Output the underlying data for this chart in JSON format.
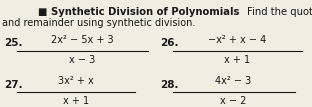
{
  "title_bold": "■ Synthetic Division of Polynomials",
  "title_normal": "Find the quotient",
  "subtitle": "and remainder using synthetic division.",
  "bg_color": "#f2ede2",
  "text_color": "#1a1a1a",
  "line_color": "#1a1a1a",
  "nums": [
    "2x² − 5x + 3",
    "−x² + x − 4",
    "3x² + x",
    "4x² − 3"
  ],
  "dens": [
    "x − 3",
    "x + 1",
    "x + 1",
    "x − 2"
  ],
  "labels": [
    "25.",
    "26.",
    "27.",
    "28."
  ],
  "label_fontsize": 7.5,
  "text_fontsize": 7.0,
  "title_fontsize": 7.2
}
